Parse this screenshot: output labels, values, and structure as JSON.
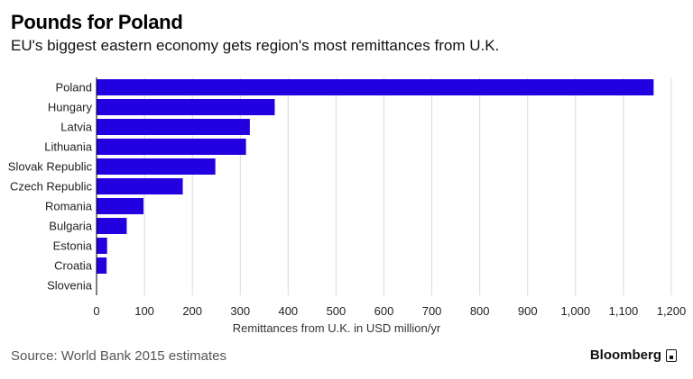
{
  "header": {
    "title": "Pounds for Poland",
    "subtitle": "EU's biggest eastern economy gets region's most remittances from U.K."
  },
  "footer": {
    "source": "Source: World Bank 2015 estimates",
    "brand": "Bloomberg"
  },
  "colors": {
    "bar": "#2200e0",
    "grid": "#d9d9d9",
    "axis": "#000000"
  },
  "chart_data": {
    "type": "bar",
    "orientation": "horizontal",
    "categories": [
      "Poland",
      "Hungary",
      "Latvia",
      "Lithuania",
      "Slovak Republic",
      "Czech Republic",
      "Romania",
      "Bulgaria",
      "Estonia",
      "Croatia",
      "Slovenia"
    ],
    "values": [
      1163,
      372,
      320,
      312,
      248,
      180,
      98,
      63,
      22,
      21,
      0
    ],
    "xlabel": "Remittances from U.K. in USD million/yr",
    "xlim": [
      0,
      1200
    ],
    "xticks": [
      0,
      100,
      200,
      300,
      400,
      500,
      600,
      700,
      800,
      900,
      1000,
      1100,
      1200
    ],
    "xtick_labels": [
      "0",
      "100",
      "200",
      "300",
      "400",
      "500",
      "600",
      "700",
      "800",
      "900",
      "1,000",
      "1,100",
      "1,200"
    ],
    "grid": true
  }
}
